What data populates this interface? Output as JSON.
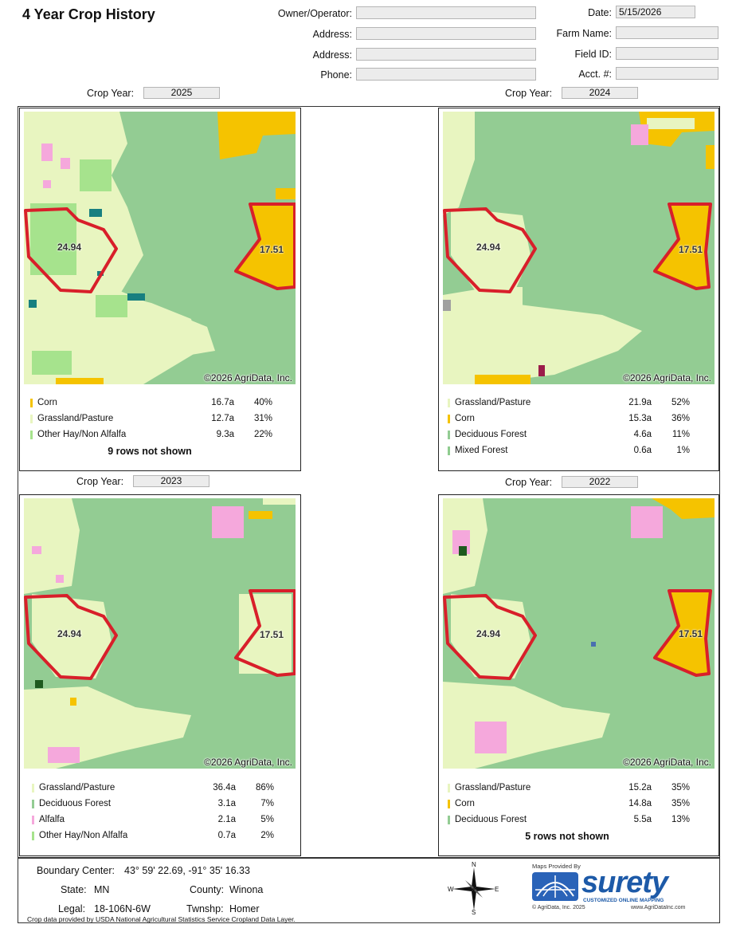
{
  "header": {
    "title": "4 Year Crop History",
    "owner_label": "Owner/Operator:",
    "owner_value": "",
    "address1_label": "Address:",
    "address1_value": "",
    "address2_label": "Address:",
    "address2_value": "",
    "phone_label": "Phone:",
    "phone_value": "",
    "date_label": "Date:",
    "date_value": "5/15/2026",
    "farm_label": "Farm Name:",
    "farm_value": "",
    "field_label": "Field ID:",
    "field_value": "",
    "acct_label": "Acct. #:",
    "acct_value": ""
  },
  "colors": {
    "corn": "#f5c300",
    "grassland": "#e8f5c0",
    "other_hay": "#a6e38d",
    "deciduous": "#93cc93",
    "mixed_forest": "#8fcc8f",
    "alfalfa": "#f5a8dc",
    "boundary": "#d81f2a",
    "water": "#177f80"
  },
  "panels": [
    {
      "crop_year_label": "Crop Year:",
      "crop_year": "2025",
      "copyright": "©2026 AgriData, Inc.",
      "field_labels": [
        "24.94",
        "17.51"
      ],
      "legend": [
        {
          "name": "Corn",
          "acres": "16.7a",
          "pct": "40%",
          "color": "#f5c300"
        },
        {
          "name": "Grassland/Pasture",
          "acres": "12.7a",
          "pct": "31%",
          "color": "#e8f5c0"
        },
        {
          "name": "Other Hay/Non Alfalfa",
          "acres": "9.3a",
          "pct": "22%",
          "color": "#a6e38d"
        }
      ],
      "rows_not_shown": "9 rows not shown"
    },
    {
      "crop_year_label": "Crop Year:",
      "crop_year": "2024",
      "copyright": "©2026 AgriData, Inc.",
      "field_labels": [
        "24.94",
        "17.51"
      ],
      "legend": [
        {
          "name": "Grassland/Pasture",
          "acres": "21.9a",
          "pct": "52%",
          "color": "#e8f5c0"
        },
        {
          "name": "Corn",
          "acres": "15.3a",
          "pct": "36%",
          "color": "#f5c300"
        },
        {
          "name": "Deciduous Forest",
          "acres": "4.6a",
          "pct": "11%",
          "color": "#93cc93"
        },
        {
          "name": "Mixed Forest",
          "acres": "0.6a",
          "pct": "1%",
          "color": "#8fcc8f"
        }
      ],
      "rows_not_shown": ""
    },
    {
      "crop_year_label": "Crop Year:",
      "crop_year": "2023",
      "copyright": "©2026 AgriData, Inc.",
      "field_labels": [
        "24.94",
        "17.51"
      ],
      "legend": [
        {
          "name": "Grassland/Pasture",
          "acres": "36.4a",
          "pct": "86%",
          "color": "#e8f5c0"
        },
        {
          "name": "Deciduous Forest",
          "acres": "3.1a",
          "pct": "7%",
          "color": "#93cc93"
        },
        {
          "name": "Alfalfa",
          "acres": "2.1a",
          "pct": "5%",
          "color": "#f5a8dc"
        },
        {
          "name": "Other Hay/Non Alfalfa",
          "acres": "0.7a",
          "pct": "2%",
          "color": "#a6e38d"
        }
      ],
      "rows_not_shown": ""
    },
    {
      "crop_year_label": "Crop Year:",
      "crop_year": "2022",
      "copyright": "©2026 AgriData, Inc.",
      "field_labels": [
        "24.94",
        "17.51"
      ],
      "legend": [
        {
          "name": "Grassland/Pasture",
          "acres": "15.2a",
          "pct": "35%",
          "color": "#e8f5c0"
        },
        {
          "name": "Corn",
          "acres": "14.8a",
          "pct": "35%",
          "color": "#f5c300"
        },
        {
          "name": "Deciduous Forest",
          "acres": "5.5a",
          "pct": "13%",
          "color": "#93cc93"
        }
      ],
      "rows_not_shown": "5 rows not shown"
    }
  ],
  "footer": {
    "boundary_label": "Boundary Center:",
    "boundary_value": "43° 59' 22.69, -91° 35' 16.33",
    "state_label": "State:",
    "state_value": "MN",
    "county_label": "County:",
    "county_value": "Winona",
    "legal_label": "Legal:",
    "legal_value": "18-106N-6W",
    "twnshp_label": "Twnshp:",
    "twnshp_value": "Homer",
    "source_note": "Crop data provided by USDA National Agricultural Statistics Service Cropland Data Layer.",
    "compass": {
      "n": "N",
      "s": "S",
      "e": "E",
      "w": "W"
    },
    "logo": {
      "maps_provided_by": "Maps Provided By",
      "brand": "surety",
      "tagline": "CUSTOMIZED ONLINE MAPPING",
      "copyright": "© AgriData, Inc. 2025",
      "website": "www.AgriDataInc.com"
    }
  }
}
